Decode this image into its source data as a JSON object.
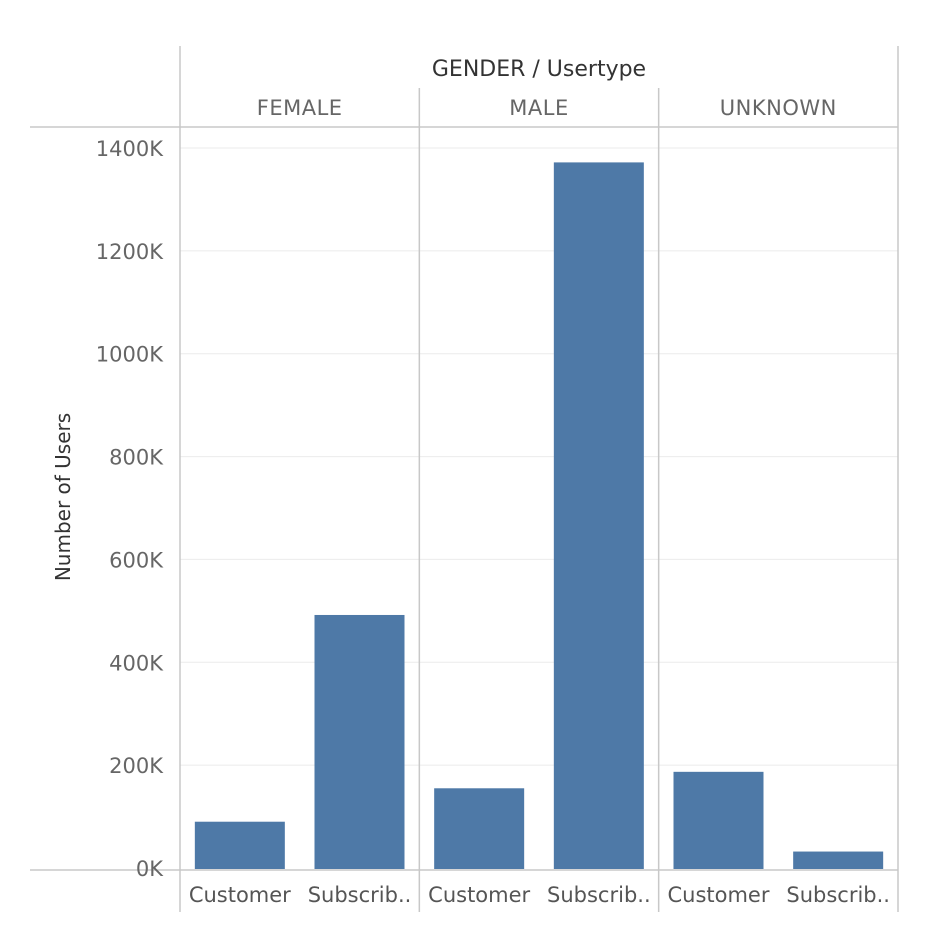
{
  "chart_data": {
    "type": "bar",
    "title": "GENDER / Usertype",
    "ylabel": "Number of Users",
    "xlabel": "",
    "ylim": [
      0,
      1440000
    ],
    "yticks": [
      0,
      200000,
      400000,
      600000,
      800000,
      1000000,
      1200000,
      1400000
    ],
    "ytick_labels": [
      "0K",
      "200K",
      "400K",
      "600K",
      "800K",
      "1000K",
      "1200K",
      "1400K"
    ],
    "groups": [
      {
        "name": "FEMALE",
        "bars": [
          {
            "label": "Customer",
            "value": 90000
          },
          {
            "label": "Subscrib..",
            "value": 492000
          }
        ]
      },
      {
        "name": "MALE",
        "bars": [
          {
            "label": "Customer",
            "value": 155000
          },
          {
            "label": "Subscrib..",
            "value": 1372000
          }
        ]
      },
      {
        "name": "UNKNOWN",
        "bars": [
          {
            "label": "Customer",
            "value": 187000
          },
          {
            "label": "Subscrib..",
            "value": 32000
          }
        ]
      }
    ],
    "bar_color": "#4e79a7",
    "grid": true
  }
}
